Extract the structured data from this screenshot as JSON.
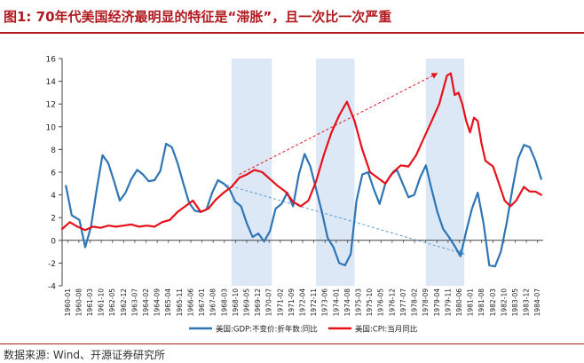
{
  "header": {
    "title": "图1: 70年代美国经济最明显的特征是“滞胀”，且一次比一次严重"
  },
  "footer": {
    "source": "数据来源: Wind、开源证券研究所"
  },
  "colors": {
    "accent": "#b0191e",
    "gdp": "#2e75b6",
    "cpi": "#e8101a",
    "recession": "#dce8f5",
    "trend_gdp": "#5b9bd5",
    "trend_cpi": "#e8101a"
  },
  "chart_data": {
    "type": "line",
    "title": "70年代美国经济最明显的特征是“滞胀”，且一次比一次严重",
    "xlabel": "",
    "ylabel": "",
    "ylim": [
      -4,
      16
    ],
    "yticks": [
      -4,
      -2,
      0,
      2,
      4,
      6,
      8,
      10,
      12,
      14,
      16
    ],
    "xlim": [
      1960.0,
      1985.0
    ],
    "tick_labels": [
      "1960-01",
      "1960-08",
      "1961-03",
      "1961-10",
      "1962-05",
      "1962-12",
      "1963-07",
      "1964-02",
      "1964-09",
      "1965-04",
      "1965-11",
      "1966-06",
      "1967-01",
      "1967-08",
      "1968-03",
      "1968-10",
      "1969-05",
      "1969-12",
      "1970-07",
      "1971-02",
      "1971-09",
      "1972-04",
      "1972-11",
      "1973-06",
      "1974-01",
      "1974-08",
      "1975-03",
      "1975-10",
      "1976-05",
      "1976-12",
      "1977-07",
      "1978-02",
      "1978-09",
      "1979-04",
      "1979-11",
      "1980-06",
      "1981-01",
      "1981-08",
      "1982-03",
      "1982-10",
      "1983-05",
      "1983-12",
      "1984-07"
    ],
    "recessions": [
      [
        1968.8,
        1970.9
      ],
      [
        1973.2,
        1975.2
      ],
      [
        1978.9,
        1980.9
      ]
    ],
    "series": [
      {
        "name": "美国:GDP:不变价:折年数:同比",
        "x": [
          1960.2,
          1960.5,
          1960.9,
          1961.2,
          1961.5,
          1961.8,
          1962.1,
          1962.4,
          1962.7,
          1963.0,
          1963.3,
          1963.6,
          1963.9,
          1964.2,
          1964.5,
          1964.8,
          1965.1,
          1965.4,
          1965.7,
          1966.0,
          1966.3,
          1966.6,
          1966.9,
          1967.2,
          1967.5,
          1967.8,
          1968.1,
          1968.4,
          1968.7,
          1969.0,
          1969.3,
          1969.6,
          1969.9,
          1970.2,
          1970.5,
          1970.8,
          1971.1,
          1971.4,
          1971.7,
          1972.0,
          1972.3,
          1972.6,
          1972.9,
          1973.2,
          1973.5,
          1973.8,
          1974.1,
          1974.4,
          1974.7,
          1975.0,
          1975.3,
          1975.6,
          1975.9,
          1976.2,
          1976.5,
          1976.8,
          1977.1,
          1977.4,
          1977.7,
          1978.0,
          1978.3,
          1978.6,
          1978.9,
          1979.2,
          1979.5,
          1979.8,
          1980.1,
          1980.4,
          1980.7,
          1981.0,
          1981.3,
          1981.6,
          1981.9,
          1982.2,
          1982.5,
          1982.8,
          1983.1,
          1983.4,
          1983.7,
          1984.0,
          1984.3,
          1984.6,
          1984.9
        ],
        "values": [
          4.8,
          2.2,
          1.8,
          -0.6,
          1.2,
          4.5,
          7.5,
          6.8,
          5.2,
          3.5,
          4.2,
          5.4,
          6.2,
          5.8,
          5.2,
          5.3,
          6.1,
          8.5,
          8.2,
          6.8,
          5.0,
          3.3,
          2.6,
          2.5,
          2.7,
          4.2,
          5.3,
          5.0,
          4.5,
          3.4,
          3.0,
          1.5,
          0.3,
          0.6,
          -0.1,
          0.8,
          2.8,
          3.2,
          4.2,
          3.0,
          5.8,
          7.6,
          6.5,
          4.5,
          2.5,
          0.2,
          -0.6,
          -2.0,
          -2.2,
          -1.2,
          3.5,
          5.8,
          6.0,
          4.5,
          3.2,
          5.0,
          5.8,
          6.2,
          5.0,
          3.8,
          4.0,
          5.5,
          6.6,
          4.5,
          2.5,
          1.0,
          0.3,
          -0.5,
          -1.4,
          0.8,
          2.8,
          4.2,
          1.5,
          -2.2,
          -2.3,
          -1.0,
          1.5,
          4.5,
          7.2,
          8.4,
          8.2,
          7.0,
          5.4
        ]
      },
      {
        "name": "美国:CPI:当月同比",
        "x": [
          1960.0,
          1960.4,
          1960.8,
          1961.2,
          1961.6,
          1962.0,
          1962.4,
          1962.8,
          1963.2,
          1963.6,
          1964.0,
          1964.4,
          1964.8,
          1965.2,
          1965.6,
          1966.0,
          1966.4,
          1966.8,
          1967.2,
          1967.6,
          1968.0,
          1968.4,
          1968.8,
          1969.2,
          1969.6,
          1970.0,
          1970.4,
          1970.8,
          1971.2,
          1971.6,
          1972.0,
          1972.4,
          1972.8,
          1973.2,
          1973.6,
          1974.0,
          1974.4,
          1974.8,
          1975.2,
          1975.6,
          1976.0,
          1976.4,
          1976.8,
          1977.2,
          1977.6,
          1978.0,
          1978.4,
          1978.8,
          1979.2,
          1979.6,
          1980.0,
          1980.2,
          1980.4,
          1980.6,
          1980.8,
          1981.0,
          1981.2,
          1981.4,
          1981.6,
          1981.8,
          1982.0,
          1982.4,
          1982.8,
          1983.0,
          1983.3,
          1983.6,
          1984.0,
          1984.3,
          1984.6,
          1984.9
        ],
        "values": [
          1.0,
          1.6,
          1.2,
          0.9,
          1.2,
          1.1,
          1.3,
          1.2,
          1.3,
          1.4,
          1.2,
          1.3,
          1.2,
          1.6,
          1.8,
          2.5,
          3.0,
          3.5,
          2.5,
          2.8,
          3.6,
          4.2,
          4.7,
          5.5,
          5.8,
          6.2,
          6.0,
          5.4,
          4.8,
          4.3,
          3.4,
          3.0,
          3.5,
          5.2,
          7.5,
          9.5,
          11.0,
          12.2,
          10.5,
          8.0,
          6.0,
          5.5,
          5.0,
          6.0,
          6.6,
          6.5,
          7.5,
          9.0,
          10.5,
          12.0,
          14.5,
          14.7,
          12.8,
          13.0,
          12.0,
          10.5,
          9.5,
          10.8,
          10.5,
          8.5,
          7.0,
          6.5,
          4.5,
          3.5,
          3.0,
          3.5,
          4.7,
          4.3,
          4.3,
          4.0
        ]
      }
    ],
    "trend_lines": [
      {
        "name": "gdp-trend",
        "from": [
          1968.3,
          5.0
        ],
        "to": [
          1980.9,
          -1.2
        ]
      },
      {
        "name": "cpi-trend",
        "from": [
          1969.2,
          5.8
        ],
        "to": [
          1979.5,
          14.7
        ]
      }
    ]
  }
}
